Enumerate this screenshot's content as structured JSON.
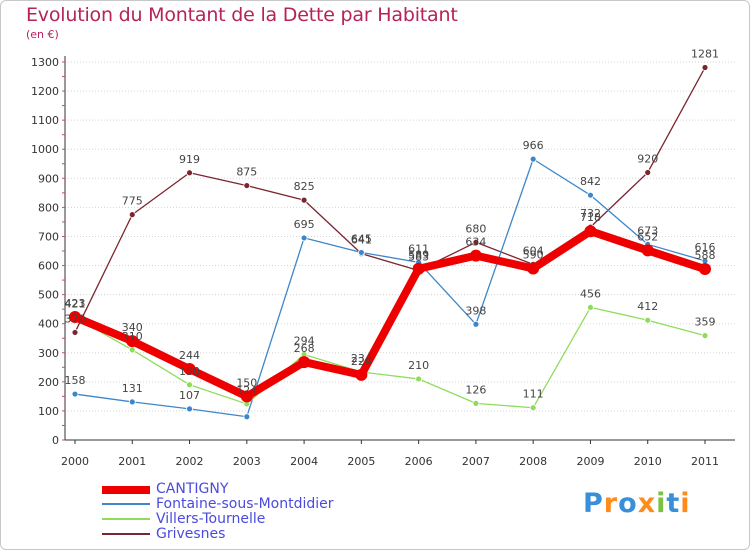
{
  "title": "Evolution du Montant de la Dette par Habitant",
  "unit": "(en €)",
  "logo": {
    "text": "Proxiti",
    "colors": [
      "#3a8fd9",
      "#ff8c1a",
      "#3a8fd9",
      "#ff8c1a",
      "#7cc142",
      "#3a8fd9",
      "#ff8c1a"
    ]
  },
  "chart_data": {
    "type": "line",
    "title": "Evolution du Montant de la Dette par Habitant",
    "ylabel": "(en €)",
    "x": [
      "2000",
      "2001",
      "2002",
      "2003",
      "2004",
      "2005",
      "2006",
      "2007",
      "2008",
      "2009",
      "2010",
      "2011"
    ],
    "ylim": [
      0,
      1300
    ],
    "yticks": [
      0,
      100,
      200,
      300,
      400,
      500,
      600,
      700,
      800,
      900,
      1000,
      1100,
      1200,
      1300
    ],
    "grid": "horizontal-dotted",
    "legend": "bottom-left",
    "series": [
      {
        "name": "CANTIGNY",
        "color": "#ee0000",
        "values": [
          423,
          340,
          244,
          150,
          268,
          224,
          589,
          634,
          590,
          718,
          652,
          588
        ]
      },
      {
        "name": "Fontaine-sous-Montdidier",
        "color": "#3d87c9",
        "values": [
          158,
          131,
          107,
          80,
          695,
          645,
          611,
          398,
          966,
          842,
          673,
          616
        ]
      },
      {
        "name": "Villers-Tournelle",
        "color": "#8fdc5c",
        "values": [
          421,
          310,
          190,
          124,
          294,
          234,
          210,
          126,
          111,
          456,
          412,
          359
        ]
      },
      {
        "name": "Grivesnes",
        "color": "#7a2630",
        "values": [
          370,
          775,
          919,
          875,
          825,
          641,
          583,
          680,
          604,
          732,
          920,
          1281
        ]
      }
    ],
    "labels": [
      {
        "series": 0,
        "values": [
          "423",
          "340",
          "244",
          "150",
          "268",
          "224",
          "589",
          "634",
          "590",
          "718",
          "652",
          "588"
        ]
      },
      {
        "series": 1,
        "values": [
          "158",
          "131",
          "107",
          "",
          "695",
          "645",
          "611",
          "398",
          "966",
          "842",
          "673",
          "616"
        ]
      },
      {
        "series": 2,
        "values": [
          "421",
          "310",
          "190",
          "124",
          "294",
          "234",
          "210",
          "126",
          "111",
          "456",
          "412",
          "359"
        ]
      },
      {
        "series": 3,
        "values": [
          "370",
          "775",
          "919",
          "875",
          "825",
          "641",
          "583",
          "680",
          "604",
          "732",
          "920",
          "1281"
        ]
      }
    ]
  }
}
